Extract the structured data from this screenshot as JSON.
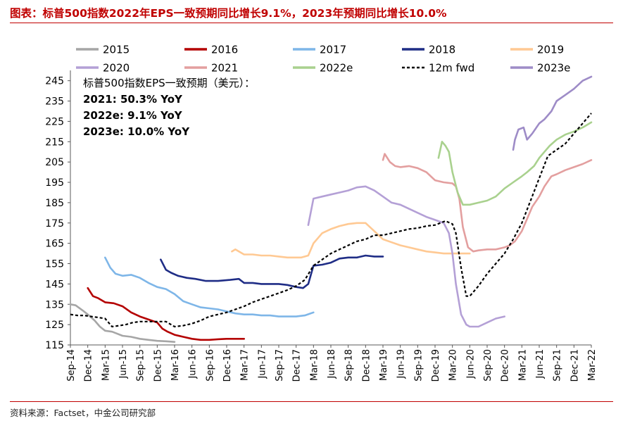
{
  "title": "图表：标普500指数2022年EPS一致预期同比增长9.1%，2023年预期同比增长10.0%",
  "source": "资料来源：Factset，中金公司研究部",
  "chart_data": {
    "type": "line",
    "ylim": [
      115,
      248
    ],
    "yticks": [
      115,
      125,
      135,
      145,
      155,
      165,
      175,
      185,
      195,
      205,
      215,
      225,
      235,
      245
    ],
    "xlabels": [
      "Sep-14",
      "Dec-14",
      "Mar-15",
      "Jun-15",
      "Sep-15",
      "Dec-15",
      "Mar-16",
      "Jun-16",
      "Sep-16",
      "Dec-16",
      "Mar-17",
      "Jun-17",
      "Sep-17",
      "Dec-17",
      "Mar-18",
      "Jun-18",
      "Sep-18",
      "Dec-18",
      "Mar-19",
      "Jun-19",
      "Sep-19",
      "Dec-19",
      "Mar-20",
      "Jun-20",
      "Sep-20",
      "Dec-20",
      "Mar-21",
      "Jun-21",
      "Sep-21",
      "Dec-21",
      "Mar-22"
    ],
    "annotation": [
      "标普500指数EPS一致预期（美元）：",
      "2021: 50.3% YoY",
      "2022e: 9.1% YoY",
      "2023e: 10.0% YoY"
    ],
    "series": [
      {
        "name": "2015",
        "color": "#a6a6a6",
        "dash": false,
        "x": [
          0,
          0.3,
          0.7,
          1.0,
          1.4,
          1.7,
          2.0,
          2.4,
          2.7,
          3.0,
          3.5,
          4.0,
          4.5,
          5.0,
          5.5,
          6.0
        ],
        "y": [
          135,
          134.5,
          132,
          130,
          127,
          124,
          122,
          121.5,
          120.5,
          119.5,
          119,
          118,
          117.5,
          117,
          116.8,
          116.5
        ]
      },
      {
        "name": "2016",
        "color": "#b40000",
        "dash": false,
        "x": [
          1.0,
          1.3,
          1.6,
          2.0,
          2.5,
          3.0,
          3.5,
          4.0,
          4.5,
          5.0,
          5.3,
          5.6,
          6.0,
          6.5,
          7.0,
          7.5,
          8.0,
          8.5,
          9.0,
          9.5,
          10.0
        ],
        "y": [
          143,
          139,
          138,
          136,
          135.5,
          134,
          131,
          129,
          127.5,
          126,
          123,
          121.5,
          120,
          119,
          118,
          117.5,
          117.5,
          117.8,
          118,
          118,
          118
        ]
      },
      {
        "name": "2017",
        "color": "#7eb6e8",
        "dash": false,
        "x": [
          2.0,
          2.3,
          2.6,
          3.0,
          3.5,
          4.0,
          4.5,
          5.0,
          5.5,
          6.0,
          6.5,
          7.0,
          7.5,
          8.0,
          8.5,
          9.0,
          9.5,
          10.0,
          10.5,
          11.0,
          11.5,
          12.0,
          12.5,
          13.0,
          13.5,
          14.0
        ],
        "y": [
          158,
          153,
          150,
          149,
          149.5,
          148,
          145.5,
          143.5,
          142.5,
          140,
          136.5,
          135,
          133.5,
          133,
          132.5,
          131.5,
          130.5,
          130,
          130,
          129.5,
          129.5,
          129,
          129,
          129,
          129.5,
          131
        ]
      },
      {
        "name": "2018",
        "color": "#1f2d86",
        "dash": false,
        "x": [
          5.2,
          5.5,
          5.8,
          6.2,
          6.7,
          7.2,
          7.8,
          8.5,
          9.2,
          9.7,
          10.0,
          10.5,
          11.0,
          11.5,
          12.0,
          12.5,
          13.0,
          13.4,
          13.7,
          14.0,
          14.5,
          15.0,
          15.5,
          16.0,
          16.5,
          17.0,
          17.5,
          18.0
        ],
        "y": [
          157,
          152,
          150.5,
          149,
          148,
          147.5,
          146.5,
          146.5,
          147,
          147.5,
          145.5,
          145.5,
          145,
          145,
          145,
          144.5,
          143.5,
          143,
          145,
          154,
          154.5,
          155.5,
          157.5,
          158,
          158,
          159,
          158.5,
          158.5
        ]
      },
      {
        "name": "2019",
        "color": "#ffc993",
        "dash": false,
        "x": [
          9.3,
          9.5,
          10.0,
          10.5,
          11.0,
          11.5,
          12.0,
          12.5,
          13.0,
          13.3,
          13.7,
          14.0,
          14.5,
          15.0,
          15.5,
          16.0,
          16.5,
          17.0,
          17.5,
          18.0,
          18.5,
          19.0,
          19.5,
          20.0,
          20.5,
          21.0,
          21.5,
          22.0,
          22.5,
          23.0
        ],
        "y": [
          161,
          162,
          159.5,
          159.5,
          159,
          159,
          158.5,
          158,
          158,
          158,
          159,
          165,
          170,
          172,
          173.5,
          174.5,
          175,
          175,
          171,
          167,
          165.5,
          164,
          163,
          162,
          161,
          160.5,
          160,
          160,
          160,
          160
        ]
      },
      {
        "name": "2020",
        "color": "#b4a0d6",
        "dash": false,
        "x": [
          13.7,
          14.0,
          14.5,
          15.0,
          15.5,
          16.0,
          16.5,
          17.0,
          17.5,
          18.0,
          18.5,
          19.0,
          19.5,
          20.0,
          20.5,
          21.0,
          21.5,
          21.8,
          22.0,
          22.2,
          22.5,
          22.8,
          23.0,
          23.5,
          24.0,
          24.5,
          25.0
        ],
        "y": [
          174,
          187,
          188,
          189,
          190,
          191,
          192.5,
          193,
          191,
          188,
          185,
          184,
          182,
          180,
          178,
          176.5,
          175,
          170,
          160,
          145,
          130,
          125,
          124,
          124,
          126,
          128,
          129
        ]
      },
      {
        "name": "2021",
        "color": "#e39f9f",
        "dash": false,
        "x": [
          18.0,
          18.1,
          18.4,
          18.7,
          19.0,
          19.5,
          20.0,
          20.5,
          21.0,
          21.5,
          22.0,
          22.2,
          22.4,
          22.6,
          22.9,
          23.2,
          23.5,
          24.0,
          24.5,
          25.0,
          25.3,
          25.6,
          26.0,
          26.3,
          26.6,
          27.0,
          27.3,
          27.7,
          28.0,
          28.5,
          29.0,
          29.5,
          30.0
        ],
        "y": [
          206,
          209,
          205,
          203,
          202.5,
          203,
          202,
          200,
          196,
          195,
          194.5,
          193,
          187,
          173,
          163,
          161,
          161.5,
          162,
          162,
          163,
          164,
          166,
          171,
          177,
          183,
          188,
          193,
          198,
          199,
          201,
          202.5,
          204,
          206
        ]
      },
      {
        "name": "2022e",
        "color": "#a9d18e",
        "dash": false,
        "x": [
          21.2,
          21.4,
          21.6,
          21.8,
          22.0,
          22.3,
          22.6,
          23.0,
          23.5,
          24.0,
          24.5,
          25.0,
          25.5,
          26.0,
          26.3,
          26.7,
          27.0,
          27.3,
          27.6,
          28.0,
          28.5,
          29.0,
          29.5,
          30.0
        ],
        "y": [
          207,
          215,
          213,
          210,
          200,
          190,
          184,
          184,
          185,
          186,
          188,
          192,
          195,
          198,
          200,
          203,
          207,
          210,
          213,
          216,
          218.5,
          220,
          222,
          224.5
        ]
      },
      {
        "name": "12m fwd",
        "color": "#000000",
        "dash": true,
        "x": [
          0,
          0.4,
          0.8,
          1.2,
          1.6,
          2.0,
          2.4,
          2.8,
          3.2,
          3.6,
          4.0,
          4.5,
          5.0,
          5.5,
          6.0,
          6.5,
          7.0,
          7.5,
          8.0,
          8.5,
          9.0,
          9.5,
          10.0,
          10.5,
          11.0,
          11.5,
          12.0,
          12.5,
          13.0,
          13.5,
          14.0,
          14.5,
          15.0,
          15.5,
          16.0,
          16.5,
          17.0,
          17.5,
          18.0,
          18.5,
          19.0,
          19.5,
          20.0,
          20.5,
          21.0,
          21.3,
          21.6,
          22.0,
          22.2,
          22.5,
          22.8,
          23.0,
          23.5,
          24.0,
          24.5,
          25.0,
          25.5,
          26.0,
          26.5,
          27.0,
          27.5,
          28.0,
          28.5,
          29.0,
          29.5,
          30.0
        ],
        "y": [
          130,
          129.5,
          129.5,
          129,
          128.5,
          128,
          124,
          124.5,
          125,
          126,
          126.5,
          126.5,
          126.5,
          126.5,
          124,
          124.5,
          125.5,
          127,
          129,
          130,
          131,
          132.5,
          134,
          136,
          137.5,
          139,
          140.5,
          142,
          144,
          147,
          154,
          157,
          160,
          162,
          164,
          166,
          167,
          169,
          169,
          170,
          171,
          172,
          172.5,
          173.5,
          174,
          175,
          176,
          174.5,
          170,
          153,
          139,
          139,
          144,
          150,
          155,
          160,
          167,
          175,
          186,
          197,
          208,
          211,
          214,
          219,
          224,
          229
        ]
      },
      {
        "name": "2023e",
        "color": "#9e8cc7",
        "dash": false,
        "x": [
          25.5,
          25.6,
          25.8,
          26.1,
          26.3,
          26.6,
          27.0,
          27.3,
          27.7,
          28.0,
          28.5,
          29.0,
          29.5,
          30.0
        ],
        "y": [
          211,
          216,
          221,
          222,
          216,
          219,
          224,
          226,
          230,
          235,
          238,
          241,
          245,
          247
        ]
      }
    ],
    "legend_rows": [
      [
        "2015",
        "2016",
        "2017",
        "2018",
        "2019"
      ],
      [
        "2020",
        "2021",
        "2022e",
        "12m fwd",
        "2023e"
      ]
    ]
  }
}
